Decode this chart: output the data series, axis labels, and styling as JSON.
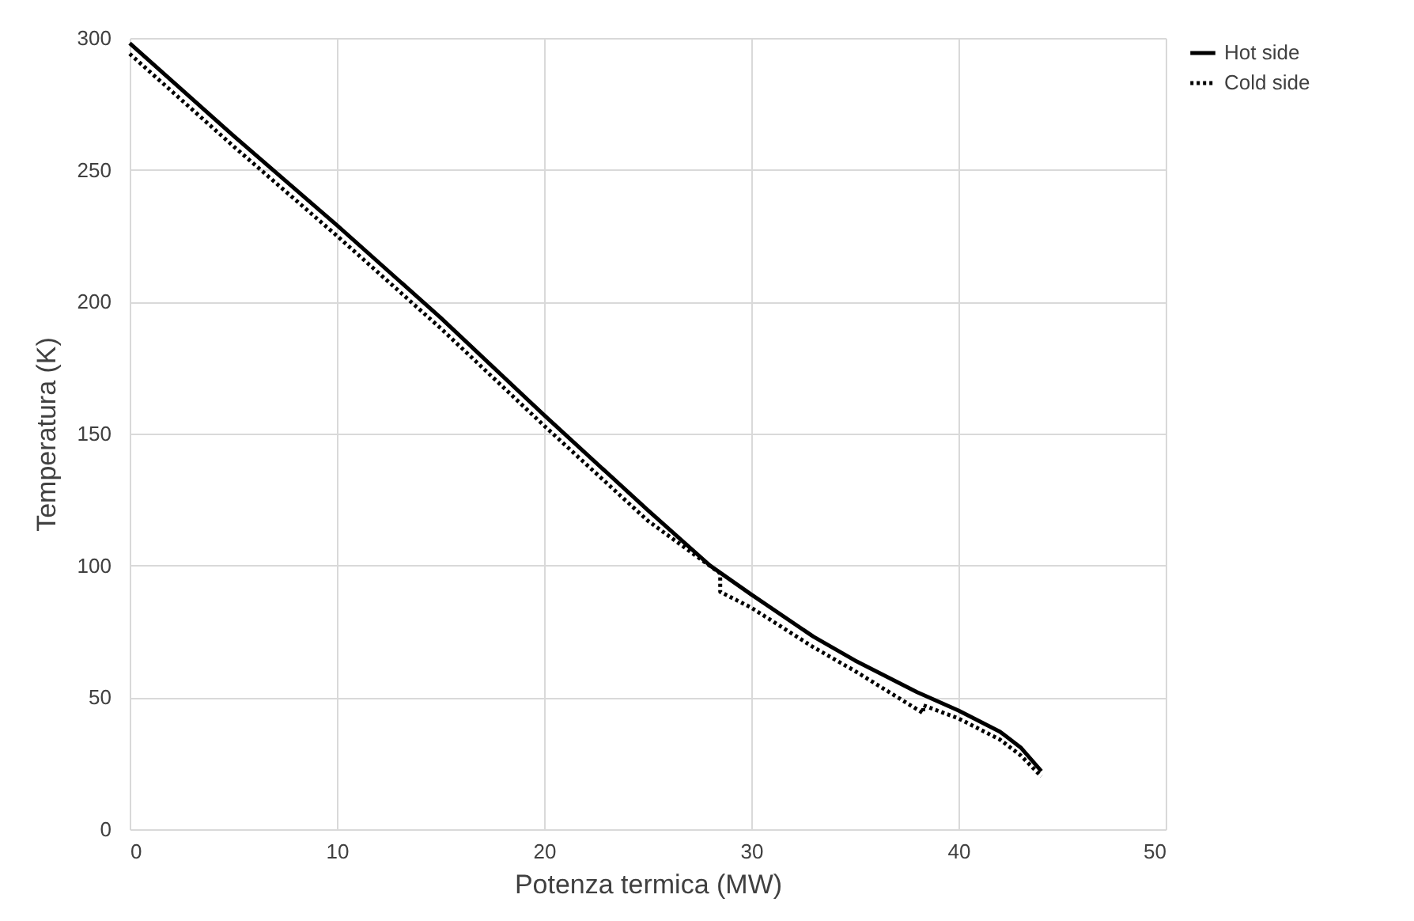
{
  "chart_data": {
    "type": "line",
    "xlabel": "Potenza termica (MW)",
    "ylabel": "Temperatura (K)",
    "xlim": [
      0,
      50
    ],
    "xticks": [
      0,
      10,
      20,
      30,
      40,
      50
    ],
    "ylim": [
      0,
      300
    ],
    "yticks": [
      0,
      50,
      100,
      150,
      200,
      250,
      300
    ],
    "grid": true,
    "legend": "right",
    "marker": "none",
    "series": [
      {
        "name": "Hot side",
        "color": "#000000",
        "line_style": "solid",
        "x": [
          0,
          5,
          10,
          15,
          20,
          25,
          28,
          30,
          33,
          35,
          38,
          40,
          42,
          43,
          44
        ],
        "values": [
          298,
          263,
          229,
          194,
          157,
          121,
          100,
          89,
          73,
          64,
          52,
          45,
          37,
          31,
          22
        ]
      },
      {
        "name": "Cold side",
        "color": "#000000",
        "line_style": "dotted",
        "x": [
          0,
          5,
          10,
          15,
          20,
          25,
          28.5,
          28.5,
          30,
          33,
          35,
          38.3,
          38.3,
          40,
          42,
          43,
          44
        ],
        "values": [
          294,
          259,
          225,
          190,
          153,
          117,
          97,
          90,
          84,
          69,
          60,
          44,
          47,
          42,
          34,
          28,
          20
        ]
      }
    ]
  }
}
